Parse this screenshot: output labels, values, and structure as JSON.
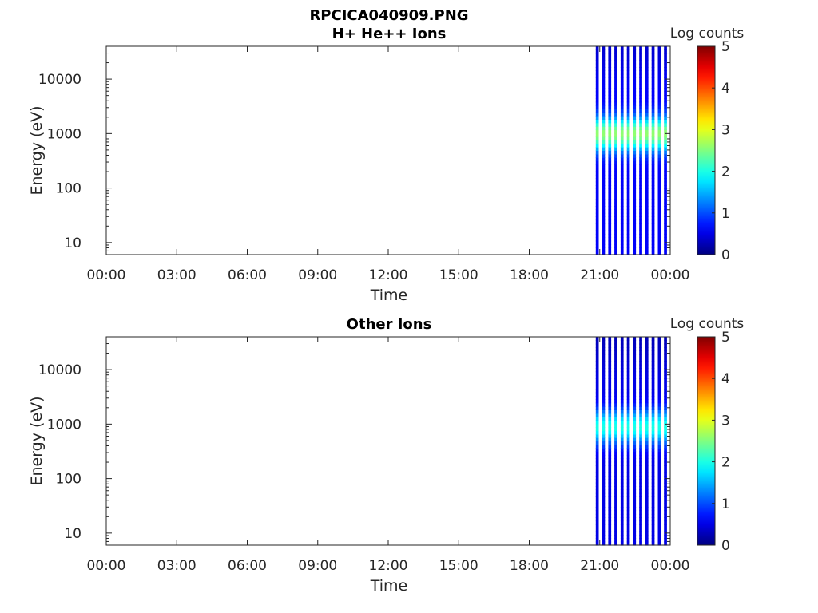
{
  "figure_title": "RPCICA040909.PNG",
  "chart_data": [
    {
      "type": "heatmap",
      "title": "H+ He++ Ions",
      "xlabel": "Time",
      "ylabel": "Energy (eV)",
      "x_ticks": [
        "00:00",
        "03:00",
        "06:00",
        "09:00",
        "12:00",
        "15:00",
        "18:00",
        "21:00",
        "00:00"
      ],
      "xlim": [
        "00:00",
        "24:00"
      ],
      "y_scale": "log",
      "ylim": [
        6,
        40000
      ],
      "y_ticks": [
        10,
        100,
        1000,
        10000
      ],
      "y_tick_labels": [
        "10",
        "100",
        "1000",
        "10000"
      ],
      "colorbar": {
        "label": "Log counts",
        "range": [
          0,
          5
        ],
        "ticks": [
          "0",
          "1",
          "2",
          "3",
          "4",
          "5"
        ],
        "colormap": "jet"
      },
      "data_time_range": [
        "20:50",
        "24:00"
      ],
      "burst_count": 12,
      "peak_energy_eV": 1000,
      "peak_log_counts": 2.6,
      "background_log_counts": 0.6
    },
    {
      "type": "heatmap",
      "title": "Other Ions",
      "xlabel": "Time",
      "ylabel": "Energy (eV)",
      "x_ticks": [
        "00:00",
        "03:00",
        "06:00",
        "09:00",
        "12:00",
        "15:00",
        "18:00",
        "21:00",
        "00:00"
      ],
      "xlim": [
        "00:00",
        "24:00"
      ],
      "y_scale": "log",
      "ylim": [
        6,
        40000
      ],
      "y_ticks": [
        10,
        100,
        1000,
        10000
      ],
      "y_tick_labels": [
        "10",
        "100",
        "1000",
        "10000"
      ],
      "colorbar": {
        "label": "Log counts",
        "range": [
          0,
          5
        ],
        "ticks": [
          "0",
          "1",
          "2",
          "3",
          "4",
          "5"
        ],
        "colormap": "jet"
      },
      "data_time_range": [
        "20:50",
        "24:00"
      ],
      "burst_count": 12,
      "peak_energy_eV": 900,
      "peak_log_counts": 2.0,
      "background_log_counts": 0.5
    }
  ]
}
